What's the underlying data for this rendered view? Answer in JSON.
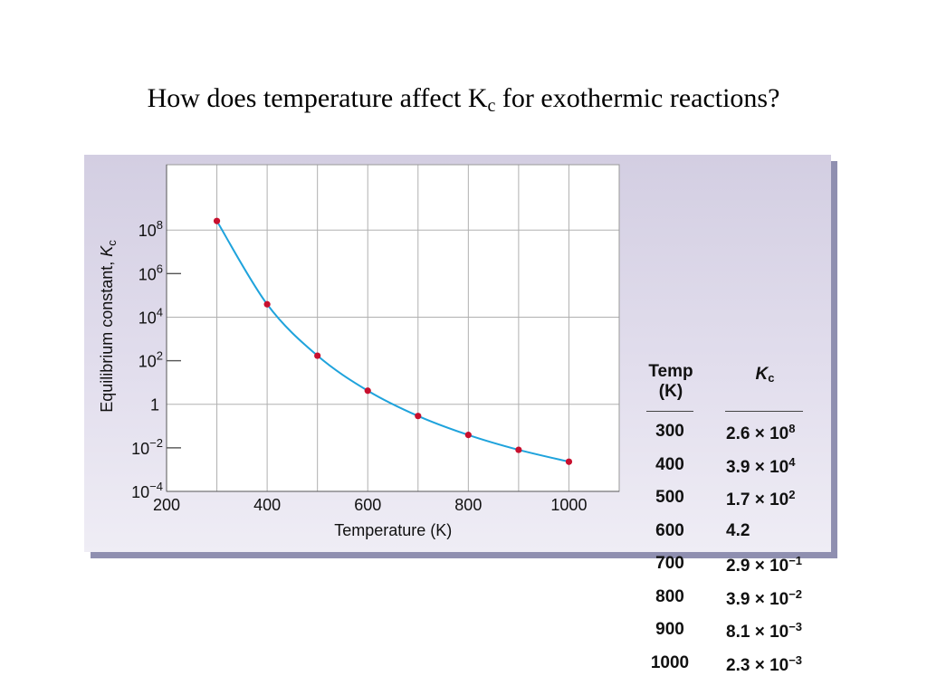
{
  "slide": {
    "title_main": "How does temperature affect K",
    "title_sub": "c",
    "title_rest": " for exothermic reactions?"
  },
  "chart_data": {
    "type": "line",
    "title": "",
    "xlabel": "Temperature (K)",
    "ylabel_main": "Equilibrium constant, ",
    "ylabel_symbol": "K",
    "ylabel_sub": "c",
    "x_ticks": [
      "200",
      "400",
      "600",
      "800",
      "1000"
    ],
    "y_ticks": [
      {
        "base": "10",
        "exp": "8"
      },
      {
        "base": "10",
        "exp": "6"
      },
      {
        "base": "10",
        "exp": "4"
      },
      {
        "base": "10",
        "exp": "2"
      },
      {
        "base": "1",
        "exp": ""
      },
      {
        "base": "10",
        "exp": "−2"
      },
      {
        "base": "10",
        "exp": "−4"
      }
    ],
    "xlim": [
      200,
      1100
    ],
    "ylim_log10": [
      -4,
      11
    ],
    "y_scale": "log",
    "grid": true,
    "series": [
      {
        "x": [
          300,
          400,
          500,
          600,
          700,
          800,
          900,
          1000
        ],
        "y": [
          260000000,
          39000,
          170,
          4.2,
          0.29,
          0.039,
          0.0081,
          0.0023
        ]
      }
    ],
    "colors": {
      "line": "#1fa3dc",
      "marker": "#c8102e",
      "grid": "#b0b0b0"
    }
  },
  "table": {
    "headers": {
      "temp_line1": "Temp",
      "temp_line2": "(K)",
      "kc_symbol": "K",
      "kc_sub": "c"
    },
    "rows": [
      {
        "temp": "300",
        "mant": "2.6 × 10",
        "exp": "8"
      },
      {
        "temp": "400",
        "mant": "3.9 × 10",
        "exp": "4"
      },
      {
        "temp": "500",
        "mant": "1.7 × 10",
        "exp": "2"
      },
      {
        "temp": "600",
        "mant": "4.2",
        "exp": ""
      },
      {
        "temp": "700",
        "mant": "2.9 × 10",
        "exp": "−1"
      },
      {
        "temp": "800",
        "mant": "3.9 × 10",
        "exp": "−2"
      },
      {
        "temp": "900",
        "mant": "8.1 × 10",
        "exp": "−3"
      },
      {
        "temp": "1000",
        "mant": "2.3 × 10",
        "exp": "−3"
      }
    ]
  }
}
